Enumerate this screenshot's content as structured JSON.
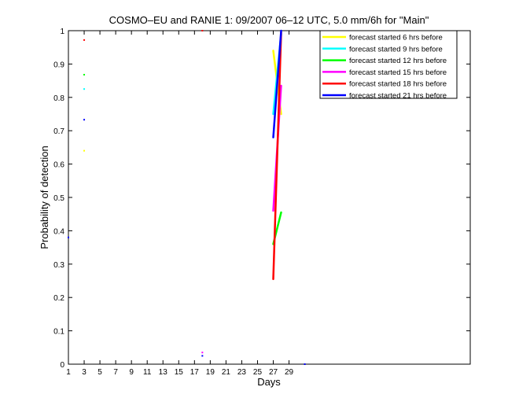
{
  "chart_data": {
    "type": "line",
    "title": "COSMO–EU and RANIE 1: 09/2007 06–12 UTC, 5.0 mm/6h for \"Main\"",
    "xlabel": "Days",
    "ylabel": "Probability of detection",
    "xlim": [
      1,
      52
    ],
    "ylim": [
      0,
      1
    ],
    "xticks": [
      "1",
      "3",
      "5",
      "7",
      "9",
      "11",
      "13",
      "15",
      "17",
      "19",
      "21",
      "23",
      "25",
      "27",
      "29"
    ],
    "yticks": [
      "0",
      "0.1",
      "0.2",
      "0.3",
      "0.4",
      "0.5",
      "0.6",
      "0.7",
      "0.8",
      "0.9",
      "1"
    ],
    "grid": false,
    "legend_position": "top-right",
    "series": [
      {
        "name": "forecast started 6 hrs before",
        "color": "#ffff00",
        "x": [
          3,
          27,
          28
        ],
        "y": [
          0.64,
          0.94,
          0.75
        ]
      },
      {
        "name": "forecast started 9 hrs before",
        "color": "#00ffff",
        "x": [
          3,
          27,
          28
        ],
        "y": [
          0.825,
          0.75,
          0.99
        ]
      },
      {
        "name": "forecast started 12 hrs before",
        "color": "#00ff00",
        "x": [
          3,
          27,
          28
        ],
        "y": [
          0.868,
          0.36,
          0.455
        ]
      },
      {
        "name": "forecast started 15 hrs before",
        "color": "#ff00ff",
        "x": [
          18,
          27,
          28
        ],
        "y": [
          0.035,
          0.46,
          0.835
        ]
      },
      {
        "name": "forecast started 18 hrs before",
        "color": "#ff0000",
        "x": [
          3,
          18,
          27,
          28
        ],
        "y": [
          0.972,
          1.0,
          0.255,
          0.995
        ]
      },
      {
        "name": "forecast started 21 hrs before",
        "color": "#0000ff",
        "x": [
          1,
          3,
          18,
          27,
          28,
          31
        ],
        "y": [
          0.38,
          0.733,
          0.025,
          0.68,
          1.0,
          0.0
        ]
      }
    ]
  }
}
